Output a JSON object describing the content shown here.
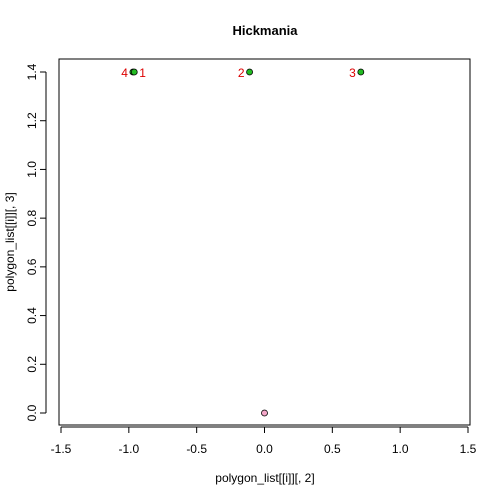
{
  "chart_data": {
    "type": "scatter",
    "title": "Hickmania",
    "xlabel": "polygon_list[[i]][, 2]",
    "ylabel": "polygon_list[[i]][, 3]",
    "xlim": [
      -1.5,
      1.5
    ],
    "ylim": [
      0,
      1.4
    ],
    "xticks": [
      "-1.5",
      "-1.0",
      "-0.5",
      "0.0",
      "0.5",
      "1.0",
      "1.5"
    ],
    "yticks": [
      "0.0",
      "0.2",
      "0.4",
      "0.6",
      "0.8",
      "1.0",
      "1.2",
      "1.4"
    ],
    "grid": false,
    "series": [
      {
        "color": "#22bb22",
        "points": [
          {
            "x": -0.97,
            "y": 1.4
          },
          {
            "x": -0.96,
            "y": 1.4
          },
          {
            "x": -0.11,
            "y": 1.4
          },
          {
            "x": 0.71,
            "y": 1.4
          }
        ]
      },
      {
        "color": "#f4a6c8",
        "points": [
          {
            "x": 0.0,
            "y": 0.0
          }
        ]
      }
    ],
    "annotations": [
      {
        "text": "1",
        "x": -0.96,
        "y": 1.4,
        "side": "right"
      },
      {
        "text": "2",
        "x": -0.11,
        "y": 1.4,
        "side": "left"
      },
      {
        "text": "3",
        "x": 0.71,
        "y": 1.4,
        "side": "left"
      },
      {
        "text": "4",
        "x": -0.97,
        "y": 1.4,
        "side": "left"
      }
    ],
    "annotation_color": "#dd0000"
  }
}
